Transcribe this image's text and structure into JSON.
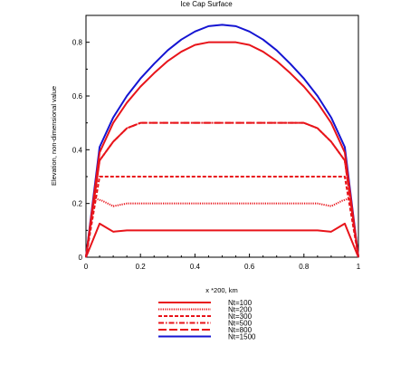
{
  "chart_data": {
    "type": "line",
    "title": "Ice Cap Surface",
    "xlabel": "x *200, km",
    "ylabel": "Elevation, non-dimensional value",
    "xlim": [
      0,
      1
    ],
    "ylim": [
      0,
      0.9
    ],
    "xticks": [
      "0",
      "0.2",
      "0.4",
      "0.6",
      "0.8",
      "1"
    ],
    "yticks": [
      "0",
      "0.2",
      "0.4",
      "0.6",
      "0.8"
    ],
    "grid": false,
    "legend_position": "bottom",
    "series": [
      {
        "name": "Nt=100",
        "color": "#e8141a",
        "dash": "solid",
        "x": [
          0,
          0.05,
          0.1,
          0.15,
          0.2,
          0.3,
          0.4,
          0.5,
          0.6,
          0.7,
          0.8,
          0.85,
          0.9,
          0.95,
          1
        ],
        "y": [
          0,
          0.125,
          0.095,
          0.1,
          0.1,
          0.1,
          0.1,
          0.1,
          0.1,
          0.1,
          0.1,
          0.1,
          0.095,
          0.125,
          0
        ]
      },
      {
        "name": "Nt=200",
        "color": "#e8141a",
        "dash": "dotted",
        "x": [
          0,
          0.03,
          0.06,
          0.1,
          0.15,
          0.2,
          0.3,
          0.4,
          0.5,
          0.6,
          0.7,
          0.8,
          0.85,
          0.9,
          0.94,
          0.97,
          1
        ],
        "y": [
          0,
          0.22,
          0.21,
          0.19,
          0.2,
          0.2,
          0.2,
          0.2,
          0.2,
          0.2,
          0.2,
          0.2,
          0.2,
          0.19,
          0.21,
          0.22,
          0
        ]
      },
      {
        "name": "Nt=300",
        "color": "#e8141a",
        "dash": "dashed",
        "x": [
          0,
          0.05,
          0.1,
          0.2,
          0.3,
          0.4,
          0.5,
          0.6,
          0.7,
          0.8,
          0.9,
          0.95,
          1
        ],
        "y": [
          0,
          0.3,
          0.3,
          0.3,
          0.3,
          0.3,
          0.3,
          0.3,
          0.3,
          0.3,
          0.3,
          0.3,
          0
        ]
      },
      {
        "name": "Nt=500",
        "color": "#e8141a",
        "dash": "dashdot",
        "x": [
          0,
          0.05,
          0.1,
          0.15,
          0.2,
          0.3,
          0.4,
          0.5,
          0.6,
          0.7,
          0.8,
          0.85,
          0.9,
          0.95,
          1
        ],
        "y": [
          0,
          0.36,
          0.43,
          0.48,
          0.5,
          0.5,
          0.5,
          0.5,
          0.5,
          0.5,
          0.5,
          0.48,
          0.43,
          0.36,
          0
        ]
      },
      {
        "name": "Nt=800",
        "color": "#e8141a",
        "dash": "longdash",
        "x": [
          0,
          0.05,
          0.1,
          0.15,
          0.2,
          0.3,
          0.4,
          0.5,
          0.6,
          0.7,
          0.8,
          0.85,
          0.9,
          0.95,
          1
        ],
        "y": [
          0,
          0.36,
          0.43,
          0.48,
          0.5,
          0.5,
          0.5,
          0.5,
          0.5,
          0.5,
          0.5,
          0.48,
          0.43,
          0.36,
          0
        ]
      },
      {
        "name": "Nt=1500",
        "color": "#1414d2",
        "dash": "solid",
        "x": [
          0,
          0.05,
          0.1,
          0.15,
          0.2,
          0.25,
          0.3,
          0.35,
          0.4,
          0.45,
          0.5,
          0.55,
          0.6,
          0.65,
          0.7,
          0.75,
          0.8,
          0.85,
          0.9,
          0.95,
          1
        ],
        "y": [
          0,
          0.41,
          0.52,
          0.6,
          0.665,
          0.72,
          0.77,
          0.81,
          0.84,
          0.86,
          0.865,
          0.86,
          0.84,
          0.81,
          0.77,
          0.72,
          0.665,
          0.6,
          0.52,
          0.41,
          0
        ]
      },
      {
        "name": "",
        "color": "#e8141a",
        "dash": "solid",
        "x": [
          0,
          0.05,
          0.1,
          0.15,
          0.2,
          0.25,
          0.3,
          0.35,
          0.4,
          0.45,
          0.5,
          0.55,
          0.6,
          0.65,
          0.7,
          0.75,
          0.8,
          0.85,
          0.9,
          0.95,
          1
        ],
        "y": [
          0,
          0.39,
          0.5,
          0.575,
          0.635,
          0.685,
          0.73,
          0.765,
          0.79,
          0.8,
          0.8,
          0.8,
          0.79,
          0.765,
          0.73,
          0.685,
          0.635,
          0.575,
          0.5,
          0.39,
          0
        ]
      }
    ]
  }
}
